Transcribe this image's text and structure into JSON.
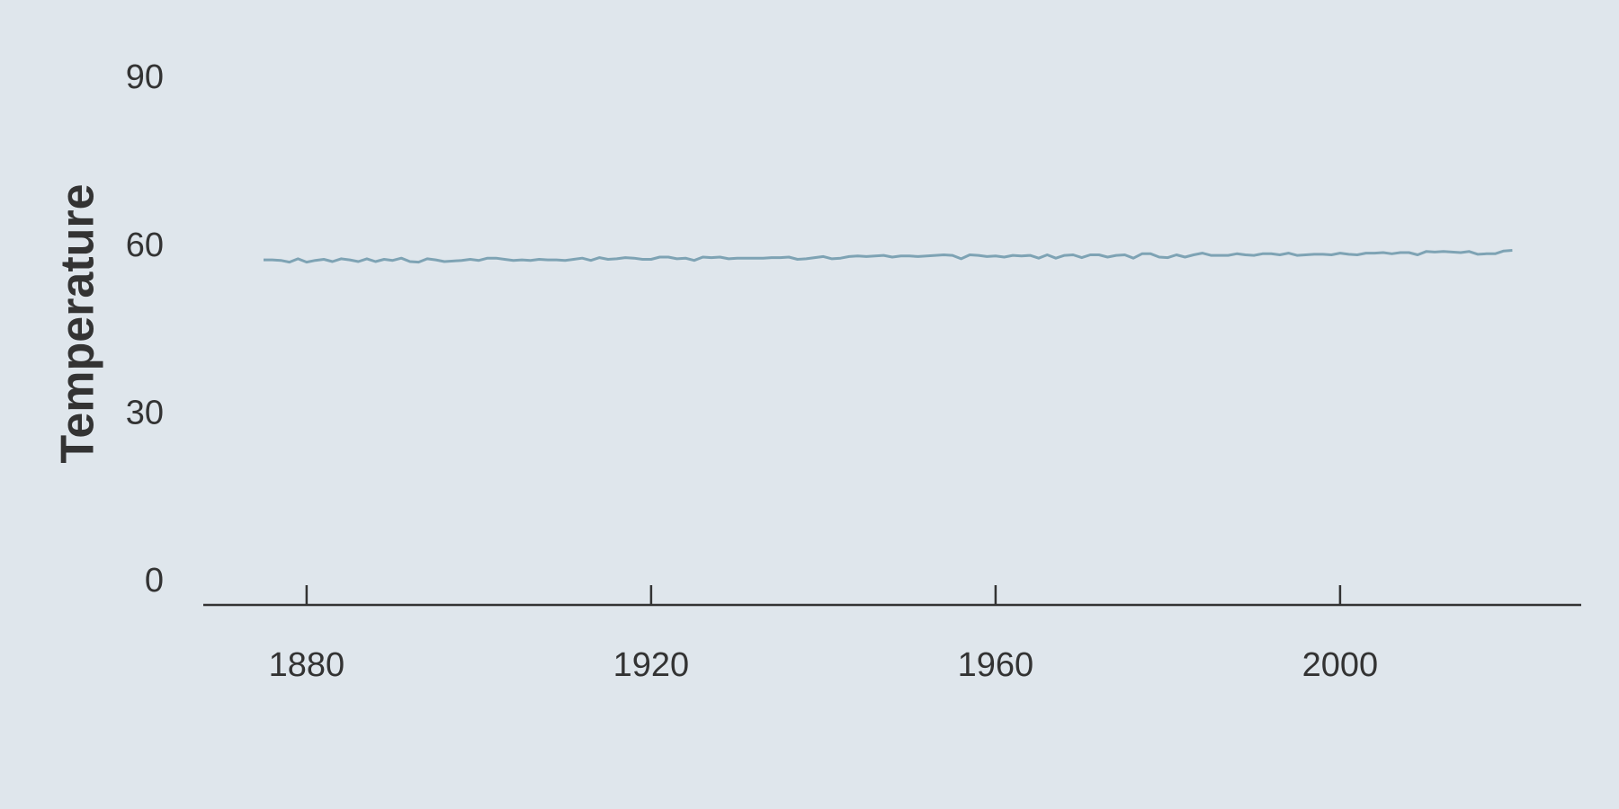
{
  "chart_data": {
    "type": "line",
    "title": "",
    "xlabel": "",
    "ylabel": "Temperature",
    "xlim": [
      1868,
      2028
    ],
    "ylim": [
      0,
      100
    ],
    "xticks": [
      1880,
      1920,
      1960,
      2000
    ],
    "yticks": [
      0,
      30,
      60,
      90
    ],
    "grid": false,
    "legend": "none",
    "colors": {
      "line": "#7ea3b4",
      "axis": "#333333",
      "text": "#333333",
      "background": "#dfe6ec"
    },
    "series": [
      {
        "x": [
          1875,
          1876,
          1877,
          1878,
          1879,
          1880,
          1881,
          1882,
          1883,
          1884,
          1885,
          1886,
          1887,
          1888,
          1889,
          1890,
          1891,
          1892,
          1893,
          1894,
          1895,
          1896,
          1897,
          1898,
          1899,
          1900,
          1901,
          1902,
          1903,
          1904,
          1905,
          1906,
          1907,
          1908,
          1909,
          1910,
          1911,
          1912,
          1913,
          1914,
          1915,
          1916,
          1917,
          1918,
          1919,
          1920,
          1921,
          1922,
          1923,
          1924,
          1925,
          1926,
          1927,
          1928,
          1929,
          1930,
          1931,
          1932,
          1933,
          1934,
          1935,
          1936,
          1937,
          1938,
          1939,
          1940,
          1941,
          1942,
          1943,
          1944,
          1945,
          1946,
          1947,
          1948,
          1949,
          1950,
          1951,
          1952,
          1953,
          1954,
          1955,
          1956,
          1957,
          1958,
          1959,
          1960,
          1961,
          1962,
          1963,
          1964,
          1965,
          1966,
          1967,
          1968,
          1969,
          1970,
          1971,
          1972,
          1973,
          1974,
          1975,
          1976,
          1977,
          1978,
          1979,
          1980,
          1981,
          1982,
          1983,
          1984,
          1985,
          1986,
          1987,
          1988,
          1989,
          1990,
          1991,
          1992,
          1993,
          1994,
          1995,
          1996,
          1997,
          1998,
          1999,
          2000,
          2001,
          2002,
          2003,
          2004,
          2005,
          2006,
          2007,
          2008,
          2009,
          2010,
          2011,
          2012,
          2013,
          2014,
          2015,
          2016,
          2017,
          2018,
          2019,
          2020
        ],
        "values": [
          57.7,
          57.7,
          57.6,
          57.3,
          57.9,
          57.3,
          57.6,
          57.8,
          57.4,
          57.9,
          57.7,
          57.4,
          57.9,
          57.4,
          57.8,
          57.6,
          58.0,
          57.4,
          57.3,
          57.9,
          57.7,
          57.4,
          57.5,
          57.6,
          57.8,
          57.6,
          58.0,
          58.0,
          57.8,
          57.6,
          57.7,
          57.6,
          57.8,
          57.7,
          57.7,
          57.6,
          57.8,
          58.0,
          57.6,
          58.1,
          57.8,
          57.9,
          58.1,
          58.0,
          57.8,
          57.8,
          58.2,
          58.2,
          57.9,
          58.0,
          57.6,
          58.2,
          58.1,
          58.2,
          57.9,
          58.0,
          58.0,
          58.0,
          58.0,
          58.1,
          58.1,
          58.2,
          57.8,
          57.9,
          58.1,
          58.3,
          57.9,
          58.0,
          58.3,
          58.4,
          58.3,
          58.4,
          58.5,
          58.2,
          58.4,
          58.4,
          58.3,
          58.4,
          58.5,
          58.6,
          58.5,
          57.9,
          58.6,
          58.5,
          58.3,
          58.4,
          58.2,
          58.5,
          58.4,
          58.5,
          58.0,
          58.6,
          58.0,
          58.5,
          58.6,
          58.1,
          58.6,
          58.6,
          58.2,
          58.5,
          58.6,
          58.0,
          58.8,
          58.8,
          58.2,
          58.1,
          58.6,
          58.2,
          58.6,
          58.9,
          58.5,
          58.5,
          58.5,
          58.8,
          58.6,
          58.5,
          58.8,
          58.8,
          58.6,
          58.9,
          58.5,
          58.6,
          58.7,
          58.7,
          58.6,
          58.9,
          58.7,
          58.6,
          58.9,
          58.9,
          59.0,
          58.8,
          59.0,
          59.0,
          58.6,
          59.2,
          59.1,
          59.2,
          59.1,
          59.0,
          59.2,
          58.7,
          58.8,
          58.8,
          59.3,
          59.4
        ]
      }
    ]
  }
}
